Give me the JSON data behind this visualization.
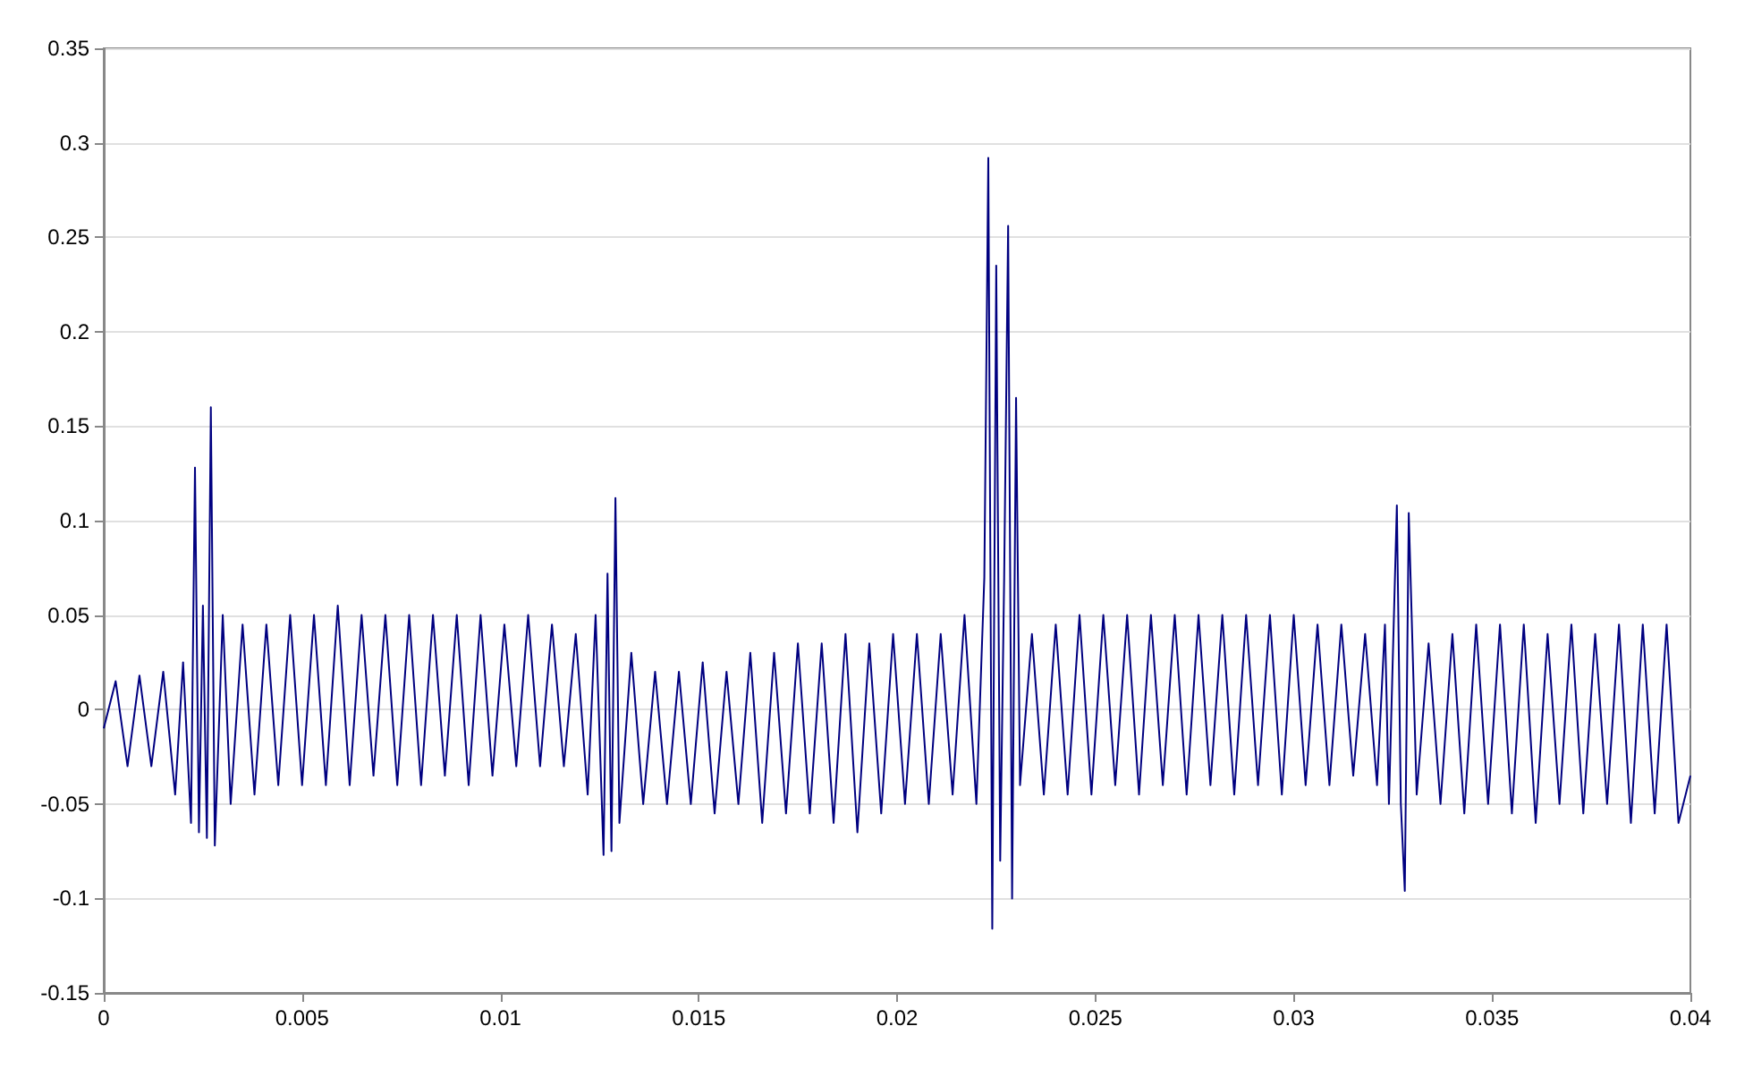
{
  "chart_data": {
    "type": "line",
    "color": "#000080",
    "marker": "none",
    "grid": "y",
    "xlim": [
      0,
      0.04
    ],
    "xticks": [
      0,
      0.005,
      0.01,
      0.015,
      0.02,
      0.025,
      0.03,
      0.035,
      0.04
    ],
    "ylim": [
      -0.15,
      0.35
    ],
    "yticks": [
      -0.15,
      -0.1,
      -0.05,
      0,
      0.05,
      0.1,
      0.15,
      0.2,
      0.25,
      0.3,
      0.35
    ],
    "x": [
      0,
      0.0003,
      0.0006,
      0.0009,
      0.0012,
      0.0015,
      0.0018,
      0.002,
      0.0022,
      0.0023,
      0.0024,
      0.0025,
      0.0026,
      0.0027,
      0.0028,
      0.003,
      0.0032,
      0.0035,
      0.0038,
      0.0041,
      0.0044,
      0.0047,
      0.005,
      0.0053,
      0.0056,
      0.0059,
      0.0062,
      0.0065,
      0.0068,
      0.0071,
      0.0074,
      0.0077,
      0.008,
      0.0083,
      0.0086,
      0.0089,
      0.0092,
      0.0095,
      0.0098,
      0.0101,
      0.0104,
      0.0107,
      0.011,
      0.0113,
      0.0116,
      0.0119,
      0.0122,
      0.0124,
      0.0126,
      0.0127,
      0.0128,
      0.0129,
      0.013,
      0.0133,
      0.0136,
      0.0139,
      0.0142,
      0.0145,
      0.0148,
      0.0151,
      0.0154,
      0.0157,
      0.016,
      0.0163,
      0.0166,
      0.0169,
      0.0172,
      0.0175,
      0.0178,
      0.0181,
      0.0184,
      0.0187,
      0.019,
      0.0193,
      0.0196,
      0.0199,
      0.0202,
      0.0205,
      0.0208,
      0.0211,
      0.0214,
      0.0217,
      0.022,
      0.0222,
      0.0223,
      0.0224,
      0.0225,
      0.0226,
      0.0227,
      0.0228,
      0.0229,
      0.023,
      0.0231,
      0.0234,
      0.0237,
      0.024,
      0.0243,
      0.0246,
      0.0249,
      0.0252,
      0.0255,
      0.0258,
      0.0261,
      0.0264,
      0.0267,
      0.027,
      0.0273,
      0.0276,
      0.0279,
      0.0282,
      0.0285,
      0.0288,
      0.0291,
      0.0294,
      0.0297,
      0.03,
      0.0303,
      0.0306,
      0.0309,
      0.0312,
      0.0315,
      0.0318,
      0.0321,
      0.0323,
      0.0324,
      0.0326,
      0.0327,
      0.0328,
      0.0329,
      0.0331,
      0.0334,
      0.0337,
      0.034,
      0.0343,
      0.0346,
      0.0349,
      0.0352,
      0.0355,
      0.0358,
      0.0361,
      0.0364,
      0.0367,
      0.037,
      0.0373,
      0.0376,
      0.0379,
      0.0382,
      0.0385,
      0.0388,
      0.0391,
      0.0394,
      0.0397,
      0.04
    ],
    "values": [
      -0.01,
      0.015,
      -0.03,
      0.018,
      -0.03,
      0.02,
      -0.045,
      0.025,
      -0.06,
      0.128,
      -0.065,
      0.055,
      -0.068,
      0.16,
      -0.072,
      0.05,
      -0.05,
      0.045,
      -0.045,
      0.045,
      -0.04,
      0.05,
      -0.04,
      0.05,
      -0.04,
      0.055,
      -0.04,
      0.05,
      -0.035,
      0.05,
      -0.04,
      0.05,
      -0.04,
      0.05,
      -0.035,
      0.05,
      -0.04,
      0.05,
      -0.035,
      0.045,
      -0.03,
      0.05,
      -0.03,
      0.045,
      -0.03,
      0.04,
      -0.045,
      0.05,
      -0.077,
      0.072,
      -0.075,
      0.112,
      -0.06,
      0.03,
      -0.05,
      0.02,
      -0.05,
      0.02,
      -0.05,
      0.025,
      -0.055,
      0.02,
      -0.05,
      0.03,
      -0.06,
      0.03,
      -0.055,
      0.035,
      -0.055,
      0.035,
      -0.06,
      0.04,
      -0.065,
      0.035,
      -0.055,
      0.04,
      -0.05,
      0.04,
      -0.05,
      0.04,
      -0.045,
      0.05,
      -0.05,
      0.07,
      0.292,
      -0.116,
      0.235,
      -0.08,
      0.07,
      0.256,
      -0.1,
      0.165,
      -0.04,
      0.04,
      -0.045,
      0.045,
      -0.045,
      0.05,
      -0.045,
      0.05,
      -0.04,
      0.05,
      -0.045,
      0.05,
      -0.04,
      0.05,
      -0.045,
      0.05,
      -0.04,
      0.05,
      -0.045,
      0.05,
      -0.04,
      0.05,
      -0.045,
      0.05,
      -0.04,
      0.045,
      -0.04,
      0.045,
      -0.035,
      0.04,
      -0.04,
      0.045,
      -0.05,
      0.108,
      -0.05,
      -0.096,
      0.104,
      -0.045,
      0.035,
      -0.05,
      0.04,
      -0.055,
      0.045,
      -0.05,
      0.045,
      -0.055,
      0.045,
      -0.06,
      0.04,
      -0.05,
      0.045,
      -0.055,
      0.04,
      -0.05,
      0.045,
      -0.06,
      0.045,
      -0.055,
      0.045,
      -0.06,
      -0.035
    ]
  }
}
